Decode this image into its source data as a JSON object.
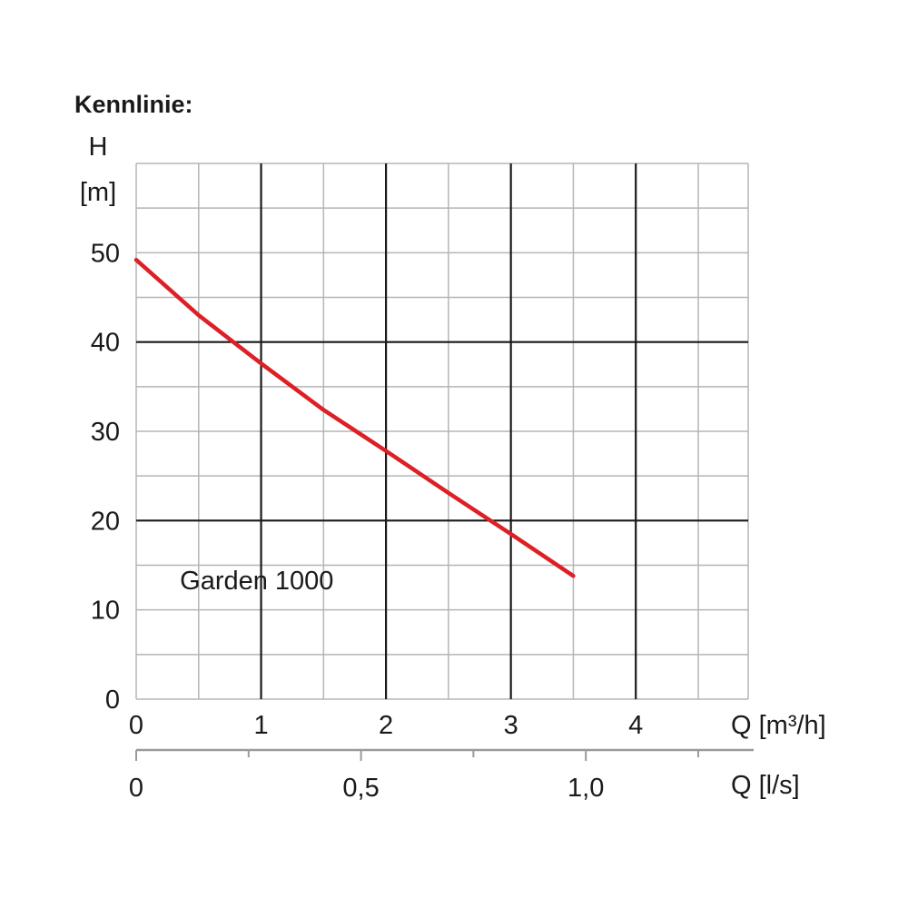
{
  "heading": "Kennlinie:",
  "colors": {
    "heading": "#1f5aa6",
    "curve": "#dd1f26",
    "grid_major": "#1a1a1a",
    "grid_minor": "#b5b5b5",
    "secondary_axis": "#9a9a9a"
  },
  "chart_data": {
    "type": "line",
    "title": "",
    "ylabel_top": "H",
    "ylabel_unit": "[m]",
    "xlabel": "Q [m³/h]",
    "xlabel_secondary": "Q [l/s]",
    "xlim": [
      0,
      4.9
    ],
    "ylim": [
      0,
      60
    ],
    "x_ticks": [
      0,
      1,
      2,
      3,
      4
    ],
    "x_tick_labels": [
      "0",
      "1",
      "2",
      "3",
      "4"
    ],
    "y_ticks": [
      0,
      10,
      20,
      30,
      40,
      50
    ],
    "y_tick_labels": [
      "0",
      "10",
      "20",
      "30",
      "40",
      "50"
    ],
    "secondary_ticks": [
      0,
      0.5,
      1.0
    ],
    "secondary_tick_labels": [
      "0",
      "0,5",
      "1,0"
    ],
    "secondary_unit_factor": 3.6,
    "grid": true,
    "series": [
      {
        "name": "Garden 1000",
        "x": [
          0,
          0.5,
          1.0,
          1.5,
          2.0,
          2.5,
          3.0,
          3.5
        ],
        "y": [
          49.2,
          43.0,
          37.6,
          32.4,
          27.8,
          23.1,
          18.5,
          13.8
        ]
      }
    ]
  }
}
